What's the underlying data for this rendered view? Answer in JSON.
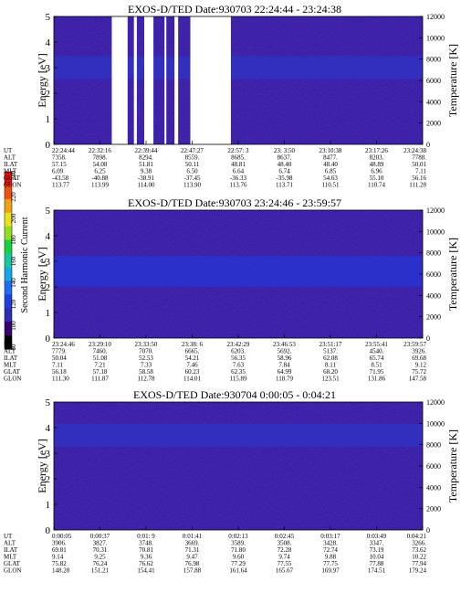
{
  "colorbar": {
    "label": "Second Harmonic Current",
    "ticks": [
      "240",
      "220",
      "200",
      "180",
      "160",
      "140",
      "120",
      "100",
      "80"
    ],
    "colors": [
      "#000000",
      "#3a0070",
      "#2c2cb8",
      "#1e40e0",
      "#1e6cf0",
      "#19a6e6",
      "#15c8a0",
      "#17d040",
      "#8ee020",
      "#e8e018",
      "#f0a010",
      "#f05010",
      "#e01010"
    ]
  },
  "chart_data": [
    {
      "type": "heatmap",
      "title": "EXOS-D/TED   Date:930703   22:24:44 - 23:24:38",
      "ylabel": "Energy [eV]",
      "ylabel_right": "Temperature [K]",
      "ylim": [
        0,
        5
      ],
      "yticks": [
        0,
        1,
        2,
        3,
        4,
        5
      ],
      "ylim_right": [
        0,
        12000
      ],
      "yticks_right": [
        0,
        2000,
        4000,
        6000,
        8000,
        10000,
        12000
      ],
      "background_color": "#3a1fa6",
      "band": {
        "energy_center": 3.0,
        "energy_width": 0.9,
        "color": "#2a3ad0"
      },
      "gaps_time_fraction": [
        [
          0.157,
          0.2
        ],
        [
          0.217,
          0.225
        ],
        [
          0.245,
          0.27
        ],
        [
          0.3,
          0.305
        ],
        [
          0.327,
          0.337
        ],
        [
          0.37,
          0.48
        ]
      ],
      "row_labels": [
        "UT",
        "ALT",
        "ILAT",
        "MLT",
        "GLAT",
        "GLON"
      ],
      "columns": [
        [
          "22:24:44",
          "7358.",
          "57.15",
          "6.09",
          "-43.58",
          "113.77"
        ],
        [
          "22:32:16",
          "7898.",
          "54.08",
          "6.25",
          "-40.88",
          "113.99"
        ],
        [
          "22:39:44",
          "8294.",
          "51.81",
          "9.38",
          "-38.91",
          "114.00"
        ],
        [
          "22:47:27",
          "8559.",
          "50.11",
          "6.50",
          "-37.45",
          "113.90"
        ],
        [
          "22:57: 3",
          "8685.",
          "48.81",
          "6.64",
          "-36.33",
          "113.76"
        ],
        [
          "23: 3:50",
          "8637.",
          "48.40",
          "6.74",
          "-35.98",
          "113.71"
        ],
        [
          "23:10:38",
          "8477.",
          "48.40",
          "6.85",
          "54.63",
          "110.51"
        ],
        [
          "23:17:26",
          "8203.",
          "48.89",
          "6.96",
          "55.10",
          "110.74"
        ],
        [
          "23:24:38",
          "7788.",
          "50.01",
          "7.11",
          "56.16",
          "111.28"
        ]
      ]
    },
    {
      "type": "heatmap",
      "title": "EXOS-D/TED   Date:930703   23:24:46 - 23:59:57",
      "ylabel": "Energy [eV]",
      "ylabel_right": "Temperature [K]",
      "ylim": [
        0,
        5
      ],
      "yticks": [
        0,
        1,
        2,
        3,
        4,
        5
      ],
      "ylim_right": [
        0,
        12000
      ],
      "yticks_right": [
        0,
        2000,
        4000,
        6000,
        8000,
        10000,
        12000
      ],
      "background_color": "#3a1fa6",
      "band": {
        "energy_center": 2.6,
        "energy_width": 1.2,
        "color": "#1e3ce6"
      },
      "gaps_time_fraction": [],
      "row_labels": [
        "UT",
        "ALT",
        "ILAT",
        "MLT",
        "GLAT",
        "GLON"
      ],
      "columns": [
        [
          "23:24:46",
          "7779.",
          "50.04",
          "7.11",
          "56.18",
          "111.30"
        ],
        [
          "23:29:10",
          "7460.",
          "51.08",
          "7.21",
          "57.18",
          "111.87"
        ],
        [
          "23:33:50",
          "7070.",
          "52.53",
          "7.33",
          "58.58",
          "112.78"
        ],
        [
          "23:38: 6",
          "6665.",
          "54.21",
          "7.46",
          "60.23",
          "114.01"
        ],
        [
          "23:42:29",
          "6203.",
          "56.35",
          "7.63",
          "62.35",
          "115.89"
        ],
        [
          "23:46:53",
          "5692.",
          "58.96",
          "7.84",
          "64.99",
          "118.79"
        ],
        [
          "23:51:17",
          "5137.",
          "62.08",
          "8.11",
          "68.20",
          "123.51"
        ],
        [
          "23:55:41",
          "4540.",
          "65.74",
          "8.51",
          "71.95",
          "131.86"
        ],
        [
          "23:59:57",
          "3926.",
          "69.68",
          "9.12",
          "75.72",
          "147.58"
        ]
      ]
    },
    {
      "type": "heatmap",
      "title": "EXOS-D/TED   Date:930704   0:00:05 - 0:04:21",
      "ylabel": "Energy [eV]",
      "ylabel_right": "Temperature [K]",
      "ylim": [
        0,
        5
      ],
      "yticks": [
        0,
        1,
        2,
        3,
        4,
        5
      ],
      "ylim_right": [
        0,
        12000
      ],
      "yticks_right": [
        0,
        2000,
        4000,
        6000,
        8000,
        10000,
        12000
      ],
      "background_color": "#3a1fa6",
      "band": {
        "energy_center": 3.7,
        "energy_width": 0.9,
        "color": "#2a3ad0"
      },
      "gaps_time_fraction": [],
      "row_labels": [
        "UT",
        "ALT",
        "ILAT",
        "MLT",
        "GLAT",
        "GLON"
      ],
      "columns": [
        [
          "0:00:05",
          "3906.",
          "69.81",
          "9.14",
          "75.82",
          "148.28"
        ],
        [
          "0:00:37",
          "3827.",
          "70.31",
          "9.25",
          "76.24",
          "151.21"
        ],
        [
          "0:01: 9",
          "3748.",
          "70.81",
          "9.36",
          "76.62",
          "154.41"
        ],
        [
          "0:01:41",
          "3669.",
          "71.31",
          "9.47",
          "76.98",
          "157.88"
        ],
        [
          "0:02:13",
          "3589.",
          "71.80",
          "9.60",
          "77.29",
          "161.64"
        ],
        [
          "0:02:45",
          "3508.",
          "72.28",
          "9.74",
          "77.55",
          "165.67"
        ],
        [
          "0:03:17",
          "3428.",
          "72.74",
          "9.88",
          "77.75",
          "169.97"
        ],
        [
          "0:03:49",
          "3347.",
          "73.19",
          "10.04",
          "77.88",
          "174.51"
        ],
        [
          "0:04:21",
          "3266.",
          "73.62",
          "10.22",
          "77.94",
          "179.24"
        ]
      ]
    }
  ]
}
